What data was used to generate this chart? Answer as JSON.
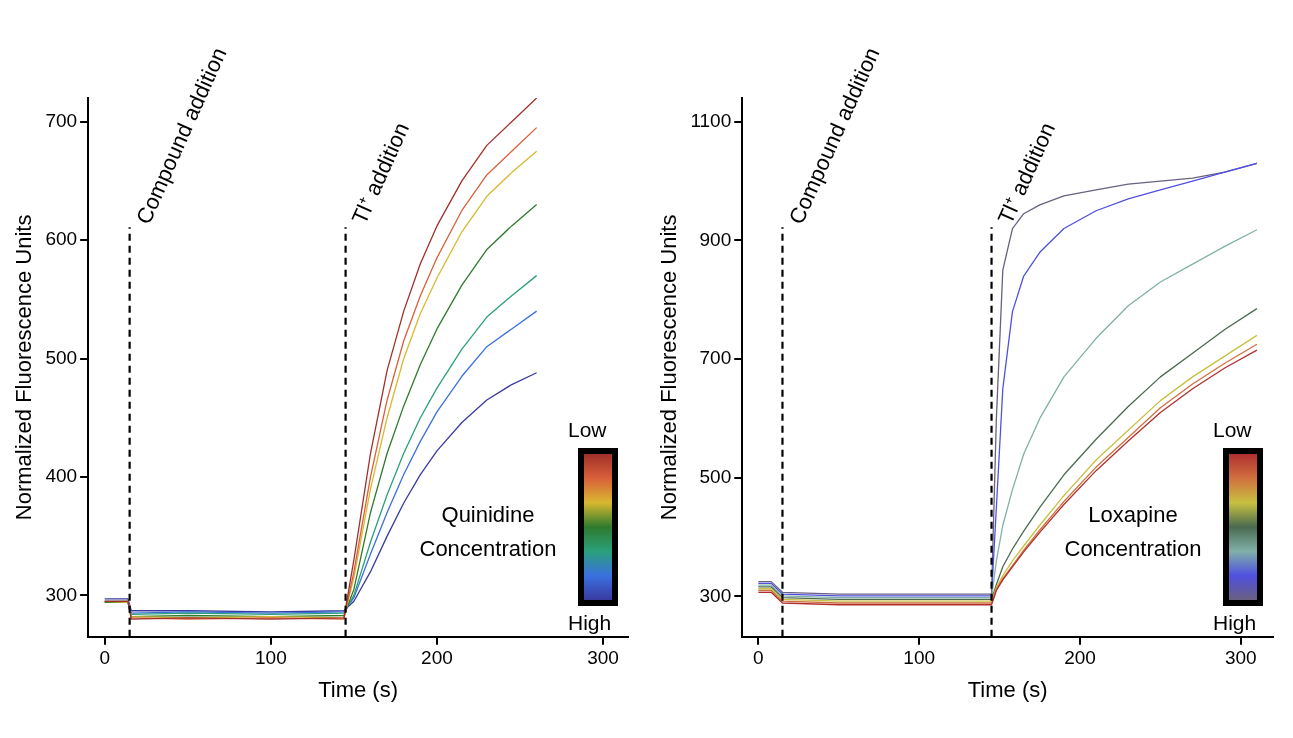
{
  "chart_data": [
    {
      "type": "line",
      "xlabel": "Time (s)",
      "ylabel": "Normalized Fluorescence Units",
      "clabel": "Quinidine Concentration",
      "annotations": [
        "Low",
        "High"
      ],
      "x": [
        0,
        14,
        16,
        50,
        100,
        144,
        150,
        160,
        170,
        180,
        190,
        200,
        215,
        230,
        245,
        260
      ],
      "series": [
        {
          "color": "#a0302a",
          "values": [
            295,
            295,
            280,
            281,
            280,
            281,
            330,
            420,
            490,
            540,
            580,
            612,
            650,
            680,
            700,
            720
          ]
        },
        {
          "color": "#d9603a",
          "values": [
            295,
            295,
            281,
            280,
            281,
            280,
            320,
            400,
            465,
            515,
            553,
            585,
            625,
            655,
            675,
            695
          ]
        },
        {
          "color": "#d8b830",
          "values": [
            295,
            294,
            282,
            281,
            282,
            281,
            315,
            390,
            450,
            500,
            538,
            568,
            607,
            637,
            657,
            675
          ]
        },
        {
          "color": "#2e7a2e",
          "values": [
            294,
            294,
            282,
            283,
            282,
            283,
            305,
            370,
            420,
            460,
            495,
            525,
            562,
            592,
            612,
            630
          ]
        },
        {
          "color": "#2aa07a",
          "values": [
            295,
            295,
            284,
            285,
            284,
            285,
            300,
            345,
            385,
            420,
            450,
            475,
            508,
            535,
            553,
            570
          ]
        },
        {
          "color": "#3a70e0",
          "values": [
            295,
            295,
            285,
            286,
            285,
            286,
            298,
            335,
            370,
            402,
            430,
            455,
            485,
            510,
            525,
            540
          ]
        },
        {
          "color": "#3a3aa0",
          "values": [
            297,
            297,
            287,
            287,
            286,
            287,
            295,
            320,
            350,
            378,
            402,
            422,
            446,
            465,
            478,
            488
          ]
        }
      ],
      "xlim": [
        -10,
        315
      ],
      "ylim": [
        265,
        720
      ],
      "xticks": [
        0,
        100,
        200,
        300
      ],
      "yticks": [
        300,
        400,
        500,
        600,
        700
      ],
      "ref_lines": [
        {
          "axis": "x",
          "value": 15,
          "label": "Compound addition",
          "line_style": "dashed"
        },
        {
          "axis": "x",
          "value": 145,
          "label": "Tl⁺ addition",
          "line_style": "dashed"
        }
      ],
      "grid": false,
      "legend": false
    },
    {
      "type": "line",
      "xlabel": "Time (s)",
      "ylabel": "Normalized Fluorescence Units",
      "clabel": "Loxapine Concentration",
      "annotations": [
        "Low",
        "High"
      ],
      "x": [
        0,
        8,
        15,
        50,
        100,
        145,
        148,
        152,
        158,
        165,
        175,
        190,
        210,
        230,
        250,
        270,
        290,
        310
      ],
      "series": [
        {
          "color": "#b03030",
          "values": [
            307,
            307,
            289,
            286,
            286,
            286,
            310,
            328,
            350,
            375,
            408,
            455,
            512,
            562,
            610,
            650,
            685,
            715
          ]
        },
        {
          "color": "#d07040",
          "values": [
            310,
            310,
            292,
            289,
            289,
            289,
            312,
            330,
            352,
            378,
            412,
            460,
            518,
            568,
            618,
            658,
            693,
            725
          ]
        },
        {
          "color": "#c8c040",
          "values": [
            313,
            313,
            295,
            292,
            292,
            292,
            315,
            335,
            360,
            385,
            420,
            470,
            530,
            580,
            630,
            670,
            705,
            740
          ]
        },
        {
          "color": "#4a6a50",
          "values": [
            316,
            316,
            298,
            295,
            295,
            295,
            320,
            350,
            380,
            410,
            450,
            505,
            565,
            620,
            670,
            710,
            750,
            785
          ]
        },
        {
          "color": "#80b0a8",
          "values": [
            319,
            319,
            301,
            298,
            298,
            298,
            360,
            420,
            480,
            540,
            600,
            670,
            735,
            790,
            830,
            860,
            890,
            918
          ]
        },
        {
          "color": "#5050e0",
          "values": [
            322,
            322,
            304,
            301,
            301,
            301,
            450,
            650,
            780,
            840,
            880,
            920,
            950,
            970,
            985,
            1000,
            1015,
            1030
          ]
        },
        {
          "color": "#6a6080",
          "values": [
            325,
            325,
            307,
            304,
            304,
            304,
            600,
            850,
            920,
            945,
            960,
            975,
            985,
            995,
            1000,
            1005,
            1015,
            1030
          ]
        }
      ],
      "xlim": [
        -10,
        320
      ],
      "ylim": [
        232,
        1140
      ],
      "xticks": [
        0,
        100,
        200,
        300
      ],
      "yticks": [
        300,
        500,
        700,
        900,
        1100
      ],
      "ref_lines": [
        {
          "axis": "x",
          "value": 15,
          "label": "Compound addition",
          "line_style": "dashed"
        },
        {
          "axis": "x",
          "value": 145,
          "label": "Tl⁺ addition",
          "line_style": "dashed"
        }
      ],
      "grid": false,
      "legend": false
    }
  ]
}
